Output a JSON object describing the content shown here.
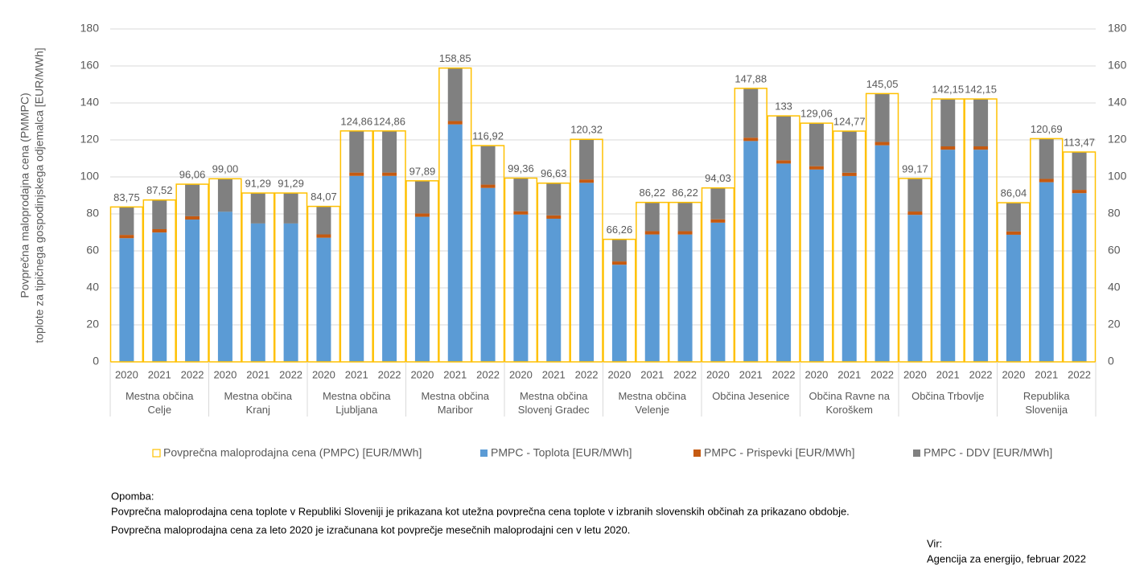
{
  "chart_data": {
    "type": "bar",
    "y_label": [
      "Povprečna maloprodajna cena (PMMPC)",
      "toplote za tipičnega gospodinjskega odjemalca  [EUR/MWh]"
    ],
    "groups": [
      "Mestna občina Celje",
      "Mestna občina Kranj",
      "Mestna občina Ljubljana",
      "Mestna občina Maribor",
      "Mestna občina Slovenj Gradec",
      "Mestna občina Velenje",
      "Občina Jesenice",
      "Občina Ravne na Koroškem",
      "Občina Trbovlje",
      "Republika Slovenija"
    ],
    "categories": [
      "2020",
      "2021",
      "2022",
      "2020",
      "2021",
      "2022",
      "2020",
      "2021",
      "2022",
      "2020",
      "2021",
      "2022",
      "2020",
      "2021",
      "2022",
      "2020",
      "2021",
      "2022",
      "2020",
      "2021",
      "2022",
      "2020",
      "2021",
      "2022",
      "2020",
      "2021",
      "2022",
      "2020",
      "2021",
      "2022"
    ],
    "series": [
      {
        "name": "Povprečna maloprodajna cena (PMPC) [EUR/MWh]",
        "color": "#ffc000",
        "kind": "outline",
        "values": [
          83.75,
          87.52,
          96.06,
          99.0,
          91.29,
          91.29,
          84.07,
          124.86,
          124.86,
          97.89,
          158.85,
          116.92,
          99.36,
          96.63,
          120.32,
          66.26,
          86.22,
          86.22,
          94.03,
          147.88,
          133,
          129.06,
          124.77,
          145.05,
          99.17,
          142.15,
          142.15,
          86.04,
          120.69,
          113.47
        ],
        "value_labels": [
          "83,75",
          "87,52",
          "96,06",
          "99,00",
          "91,29",
          "91,29",
          "84,07",
          "124,86",
          "124,86",
          "97,89",
          "158,85",
          "116,92",
          "99,36",
          "96,63",
          "120,32",
          "66,26",
          "86,22",
          "86,22",
          "94,03",
          "147,88",
          "133",
          "129,06",
          "124,77",
          "145,05",
          "99,17",
          "142,15",
          "142,15",
          "86,04",
          "120,69",
          "113,47"
        ]
      },
      {
        "name": "PMPC - Toplota [EUR/MWh]",
        "color": "#5b9bd5",
        "kind": "stack",
        "values": [
          66.85,
          69.94,
          76.94,
          81.15,
          74.83,
          74.83,
          67.11,
          100.54,
          100.54,
          78.44,
          128.4,
          94.04,
          79.64,
          77.4,
          96.82,
          52.51,
          68.87,
          68.87,
          75.27,
          119.41,
          107.22,
          103.99,
          100.47,
          117.09,
          79.49,
          114.72,
          114.72,
          68.72,
          97.13,
          91.21
        ]
      },
      {
        "name": "PMPC - Prispevki [EUR/MWh]",
        "color": "#c55a11",
        "kind": "stack",
        "values": [
          1.8,
          1.8,
          1.8,
          0,
          0,
          0,
          1.8,
          1.8,
          1.8,
          1.8,
          1.8,
          1.8,
          1.8,
          1.8,
          1.8,
          1.8,
          1.8,
          1.8,
          1.8,
          1.8,
          1.8,
          1.8,
          1.8,
          1.8,
          1.8,
          1.8,
          1.8,
          1.8,
          1.8,
          1.8
        ]
      },
      {
        "name": "PMPC - DDV [EUR/MWh]",
        "color": "#808080",
        "kind": "stack",
        "values": [
          15.1,
          15.78,
          17.32,
          17.85,
          16.46,
          16.46,
          15.16,
          22.52,
          22.52,
          17.65,
          28.65,
          21.08,
          17.92,
          17.43,
          21.7,
          11.95,
          15.55,
          15.55,
          16.96,
          26.67,
          23.98,
          23.27,
          22.5,
          26.16,
          17.88,
          25.63,
          25.63,
          15.52,
          21.76,
          20.46
        ]
      }
    ],
    "ylim": [
      0,
      180
    ],
    "yticks": [
      0,
      20,
      40,
      60,
      80,
      100,
      120,
      140,
      160,
      180
    ],
    "y2lim": [
      0,
      180
    ],
    "y2ticks": [
      0,
      20,
      40,
      60,
      80,
      100,
      120,
      140,
      160,
      180
    ],
    "grid": true,
    "legend": "bottom",
    "note_title": "Opomba:",
    "notes": [
      "Povprečna maloprodajna cena toplote v Republiki Sloveniji je prikazana kot utežna povprečna cena toplote v izbranih slovenskih občinah za prikazano obdobje.",
      "Povprečna maloprodajna cena za leto 2020 je izračunana kot povprečje mesečnih maloprodajni cen v letu 2020."
    ],
    "source_title": "Vir:",
    "source": "Agencija za energijo, februar 2022"
  }
}
